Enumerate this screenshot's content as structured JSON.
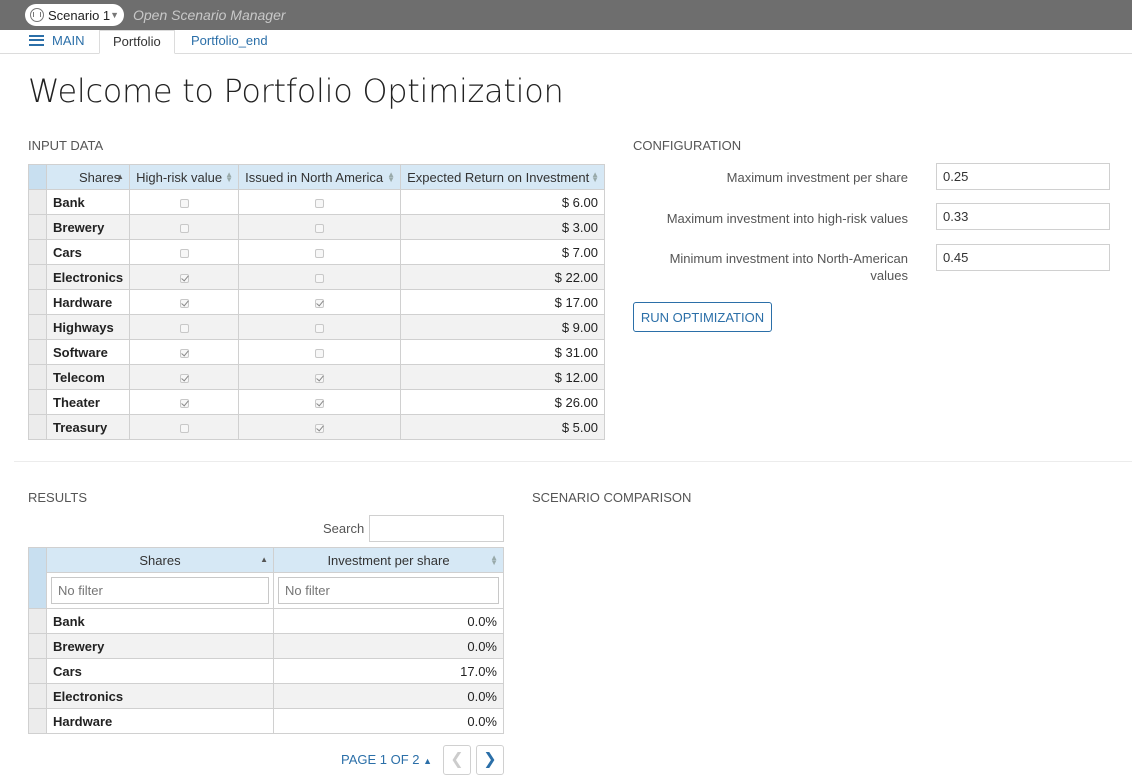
{
  "header": {
    "scenario_label": "Scenario 1",
    "app_title": "Open Scenario Manager"
  },
  "tabs": [
    {
      "label": "MAIN"
    },
    {
      "label": "Portfolio"
    },
    {
      "label": "Portfolio_end"
    }
  ],
  "page_title": "Welcome to Portfolio Optimization",
  "input_data": {
    "title": "INPUT DATA",
    "columns": [
      "Shares",
      "High-risk value",
      "Issued in North America",
      "Expected Return on Investment"
    ],
    "rows": [
      {
        "share": "Bank",
        "high_risk": false,
        "north_america": false,
        "return": "$ 6.00"
      },
      {
        "share": "Brewery",
        "high_risk": false,
        "north_america": false,
        "return": "$ 3.00"
      },
      {
        "share": "Cars",
        "high_risk": false,
        "north_america": false,
        "return": "$ 7.00"
      },
      {
        "share": "Electronics",
        "high_risk": true,
        "north_america": false,
        "return": "$ 22.00"
      },
      {
        "share": "Hardware",
        "high_risk": true,
        "north_america": true,
        "return": "$ 17.00"
      },
      {
        "share": "Highways",
        "high_risk": false,
        "north_america": false,
        "return": "$ 9.00"
      },
      {
        "share": "Software",
        "high_risk": true,
        "north_america": false,
        "return": "$ 31.00"
      },
      {
        "share": "Telecom",
        "high_risk": true,
        "north_america": true,
        "return": "$ 12.00"
      },
      {
        "share": "Theater",
        "high_risk": true,
        "north_america": true,
        "return": "$ 26.00"
      },
      {
        "share": "Treasury",
        "high_risk": false,
        "north_america": true,
        "return": "$ 5.00"
      }
    ]
  },
  "configuration": {
    "title": "CONFIGURATION",
    "max_per_share_label": "Maximum investment per share",
    "max_per_share_value": "0.25",
    "max_high_risk_label": "Maximum investment into high-risk values",
    "max_high_risk_value": "0.33",
    "min_na_label_line1": "Minimum investment into North-American",
    "min_na_label_line2": "values",
    "min_na_value": "0.45",
    "run_button": "RUN OPTIMIZATION"
  },
  "results": {
    "title": "RESULTS",
    "search_label": "Search",
    "columns": [
      "Shares",
      "Investment per share"
    ],
    "filter_placeholder": "No filter",
    "rows": [
      {
        "share": "Bank",
        "investment": "0.0%"
      },
      {
        "share": "Brewery",
        "investment": "0.0%"
      },
      {
        "share": "Cars",
        "investment": "17.0%"
      },
      {
        "share": "Electronics",
        "investment": "0.0%"
      },
      {
        "share": "Hardware",
        "investment": "0.0%"
      }
    ],
    "pager_label": "PAGE 1 OF 2"
  },
  "scenario_comparison": {
    "title": "SCENARIO COMPARISON"
  }
}
